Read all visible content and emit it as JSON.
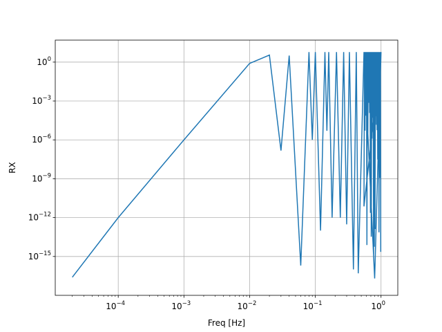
{
  "chart_data": {
    "type": "line",
    "title": "",
    "xlabel": "Freq [Hz]",
    "ylabel": "RX",
    "xscale": "log",
    "yscale": "log",
    "xlim": [
      1.1e-05,
      1.8
    ],
    "ylim": [
      1e-18,
      50
    ],
    "grid": true,
    "line_color": "#1f77b4",
    "x_ticks": [
      {
        "value": 0.0001,
        "mantissa": "10",
        "exp": "−4"
      },
      {
        "value": 0.001,
        "mantissa": "10",
        "exp": "−3"
      },
      {
        "value": 0.01,
        "mantissa": "10",
        "exp": "−2"
      },
      {
        "value": 0.1,
        "mantissa": "10",
        "exp": "−1"
      },
      {
        "value": 1,
        "mantissa": "10",
        "exp": "0"
      }
    ],
    "y_ticks": [
      {
        "value": 1,
        "mantissa": "10",
        "exp": "0"
      },
      {
        "value": 0.001,
        "mantissa": "10",
        "exp": "−3"
      },
      {
        "value": 1e-06,
        "mantissa": "10",
        "exp": "−6"
      },
      {
        "value": 1e-09,
        "mantissa": "10",
        "exp": "−9"
      },
      {
        "value": 1e-12,
        "mantissa": "10",
        "exp": "−12"
      },
      {
        "value": 1e-15,
        "mantissa": "10",
        "exp": "−15"
      }
    ],
    "series": [
      {
        "points": [
          [
            2e-05,
            2.5e-17
          ],
          [
            0.0001,
            1e-12
          ],
          [
            0.001,
            1e-06
          ],
          [
            0.01,
            0.8
          ],
          [
            0.02,
            3.5
          ],
          [
            0.03,
            1.5e-07
          ],
          [
            0.04,
            3.2
          ],
          [
            0.06,
            2e-16
          ],
          [
            0.08,
            6
          ],
          [
            0.09,
            1e-06
          ],
          [
            0.1,
            6
          ],
          [
            0.12,
            1e-13
          ],
          [
            0.14,
            6
          ],
          [
            0.15,
            5e-06
          ],
          [
            0.16,
            6
          ],
          [
            0.18,
            1e-12
          ],
          [
            0.21,
            6
          ],
          [
            0.24,
            1e-12
          ],
          [
            0.27,
            6
          ],
          [
            0.3,
            3e-13
          ],
          [
            0.33,
            6
          ],
          [
            0.38,
            1e-16
          ],
          [
            0.42,
            6
          ],
          [
            0.45,
            5e-17
          ],
          [
            0.55,
            6
          ],
          [
            0.8,
            2e-17
          ],
          [
            1.0,
            6
          ]
        ]
      }
    ]
  }
}
